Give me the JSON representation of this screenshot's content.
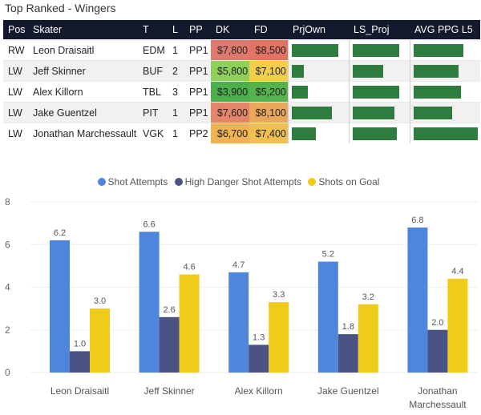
{
  "title": "Top Ranked - Wingers",
  "table": {
    "columns": [
      "Pos",
      "Skater",
      "T",
      "L",
      "PP",
      "DK",
      "FD",
      "PrjOwn",
      "LS_Proj",
      "AVG PPG L5"
    ],
    "rows": [
      {
        "pos": "RW",
        "skater": "Leon Draisaitl",
        "team": "EDM",
        "line": "1",
        "pp": "PP1",
        "dk": "$7,800",
        "fd": "$8,500",
        "dk_color": "#e07a6e",
        "fd_color": "#e27464",
        "prjown": 0.86,
        "ls_proj": 0.86,
        "avg_ppg": 0.78
      },
      {
        "pos": "LW",
        "skater": "Jeff Skinner",
        "team": "BUF",
        "line": "2",
        "pp": "PP1",
        "dk": "$5,800",
        "fd": "$7,100",
        "dk_color": "#8fd05a",
        "fd_color": "#f2cf4a",
        "prjown": 0.22,
        "ls_proj": 0.57,
        "avg_ppg": 0.7
      },
      {
        "pos": "LW",
        "skater": "Alex Killorn",
        "team": "TBL",
        "line": "3",
        "pp": "PP1",
        "dk": "$3,900",
        "fd": "$5,200",
        "dk_color": "#4cae4c",
        "fd_color": "#55b24e",
        "prjown": 0.3,
        "ls_proj": 0.86,
        "avg_ppg": 0.74
      },
      {
        "pos": "LW",
        "skater": "Jake Guentzel",
        "team": "PIT",
        "line": "1",
        "pp": "PP1",
        "dk": "$7,600",
        "fd": "$8,100",
        "dk_color": "#e5846a",
        "fd_color": "#eaa75a",
        "prjown": 0.75,
        "ls_proj": 0.77,
        "avg_ppg": 0.6
      },
      {
        "pos": "LW",
        "skater": "Jonathan Marchessault",
        "team": "VGK",
        "line": "1",
        "pp": "PP2",
        "dk": "$6,700",
        "fd": "$7,400",
        "dk_color": "#f0b354",
        "fd_color": "#efbf50",
        "prjown": 0.45,
        "ls_proj": 0.82,
        "avg_ppg": 1.0
      }
    ]
  },
  "legend": [
    {
      "label": "Shot Attempts",
      "color": "#4f86dc"
    },
    {
      "label": "High Danger Shot Attempts",
      "color": "#4a5383"
    },
    {
      "label": "Shots on Goal",
      "color": "#efcb1a"
    }
  ],
  "chart_data": {
    "type": "bar",
    "categories": [
      "Leon Draisaitl",
      "Jeff Skinner",
      "Alex Killorn",
      "Jake Guentzel",
      "Jonathan Marchessault"
    ],
    "category_lines": [
      [
        "Leon Draisaitl"
      ],
      [
        "Jeff Skinner"
      ],
      [
        "Alex Killorn"
      ],
      [
        "Jake Guentzel"
      ],
      [
        "Jonathan",
        "Marchessault"
      ]
    ],
    "series": [
      {
        "name": "Shot Attempts",
        "values": [
          6.2,
          6.6,
          4.7,
          5.2,
          6.8
        ],
        "labels": [
          "6.2",
          "6.6",
          "4.7",
          "5.2",
          "6.8"
        ]
      },
      {
        "name": "High Danger Shot Attempts",
        "values": [
          1.0,
          2.6,
          1.3,
          1.8,
          2.0
        ],
        "labels": [
          "1.0",
          "2.6",
          "1.3",
          "1.8",
          "2.0"
        ]
      },
      {
        "name": "Shots on Goal",
        "values": [
          3.0,
          4.6,
          3.3,
          3.2,
          4.4
        ],
        "labels": [
          "3.0",
          "4.6",
          "3.3",
          "3.2",
          "4.4"
        ]
      }
    ],
    "ylim": [
      0,
      8
    ],
    "yticks": [
      "0",
      "2",
      "4",
      "6",
      "8"
    ],
    "title": "",
    "xlabel": "",
    "ylabel": ""
  }
}
